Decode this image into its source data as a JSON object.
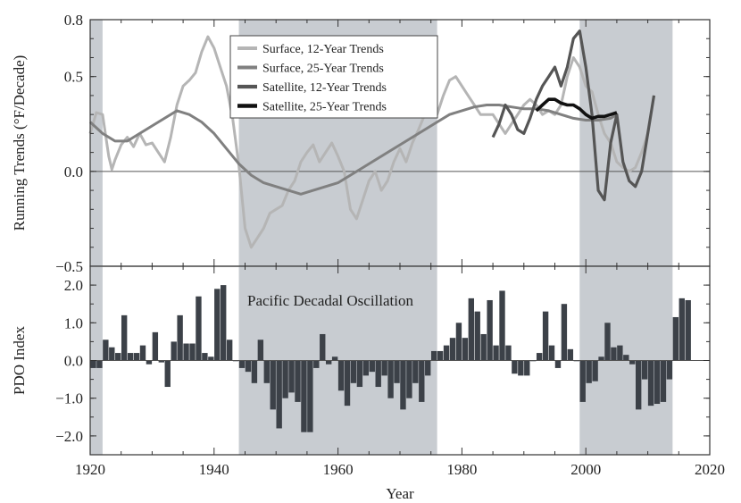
{
  "chart_data": [
    {
      "type": "line",
      "xlabel": "",
      "ylabel": "Running Trends (°F/Decade)",
      "xlim": [
        1920,
        2020
      ],
      "ylim": [
        -0.5,
        0.8
      ],
      "y_ticks": [
        {
          "value": 0.8,
          "label": "0.8"
        },
        {
          "value": 0.5,
          "label": "0.5"
        },
        {
          "value": 0.0,
          "label": "0.0"
        },
        {
          "value": -0.5,
          "label": "−0.5"
        }
      ],
      "shaded_periods": [
        [
          1920,
          1922
        ],
        [
          1944,
          1976
        ],
        [
          1999,
          2014
        ]
      ],
      "legend_position": "top-center",
      "series": [
        {
          "name": "Surface, 12-Year Trends",
          "color": "#b5b5b5",
          "points": [
            [
              1920,
              0.2
            ],
            [
              1921,
              0.31
            ],
            [
              1922,
              0.3
            ],
            [
              1923,
              0.08
            ],
            [
              1923.5,
              0.01
            ],
            [
              1924,
              0.06
            ],
            [
              1925,
              0.14
            ],
            [
              1926,
              0.18
            ],
            [
              1927,
              0.13
            ],
            [
              1928,
              0.2
            ],
            [
              1929,
              0.14
            ],
            [
              1930,
              0.15
            ],
            [
              1931,
              0.1
            ],
            [
              1932,
              0.05
            ],
            [
              1933,
              0.18
            ],
            [
              1934,
              0.35
            ],
            [
              1935,
              0.45
            ],
            [
              1936,
              0.48
            ],
            [
              1937,
              0.52
            ],
            [
              1938,
              0.63
            ],
            [
              1939,
              0.71
            ],
            [
              1940,
              0.65
            ],
            [
              1941,
              0.55
            ],
            [
              1942,
              0.45
            ],
            [
              1943,
              0.28
            ],
            [
              1944,
              0.03
            ],
            [
              1945,
              -0.3
            ],
            [
              1946,
              -0.4
            ],
            [
              1947,
              -0.35
            ],
            [
              1948,
              -0.3
            ],
            [
              1949,
              -0.22
            ],
            [
              1950,
              -0.2
            ],
            [
              1951,
              -0.18
            ],
            [
              1952,
              -0.1
            ],
            [
              1953,
              -0.05
            ],
            [
              1954,
              0.05
            ],
            [
              1955,
              0.1
            ],
            [
              1956,
              0.14
            ],
            [
              1957,
              0.05
            ],
            [
              1958,
              0.1
            ],
            [
              1959,
              0.15
            ],
            [
              1960,
              0.08
            ],
            [
              1961,
              0.0
            ],
            [
              1962,
              -0.2
            ],
            [
              1963,
              -0.25
            ],
            [
              1964,
              -0.15
            ],
            [
              1965,
              -0.05
            ],
            [
              1966,
              0.0
            ],
            [
              1967,
              -0.1
            ],
            [
              1968,
              -0.05
            ],
            [
              1969,
              0.05
            ],
            [
              1970,
              0.12
            ],
            [
              1971,
              0.05
            ],
            [
              1972,
              0.15
            ],
            [
              1973,
              0.22
            ],
            [
              1974,
              0.3
            ],
            [
              1975,
              0.32
            ],
            [
              1976,
              0.3
            ],
            [
              1977,
              0.4
            ],
            [
              1978,
              0.48
            ],
            [
              1979,
              0.5
            ],
            [
              1980,
              0.45
            ],
            [
              1981,
              0.4
            ],
            [
              1982,
              0.35
            ],
            [
              1983,
              0.3
            ],
            [
              1984,
              0.3
            ],
            [
              1985,
              0.3
            ],
            [
              1986,
              0.25
            ],
            [
              1987,
              0.2
            ],
            [
              1988,
              0.25
            ],
            [
              1989,
              0.3
            ],
            [
              1990,
              0.35
            ],
            [
              1991,
              0.38
            ],
            [
              1992,
              0.35
            ],
            [
              1993,
              0.3
            ],
            [
              1994,
              0.32
            ],
            [
              1995,
              0.3
            ],
            [
              1996,
              0.35
            ],
            [
              1997,
              0.5
            ],
            [
              1998,
              0.6
            ],
            [
              1999,
              0.55
            ],
            [
              2000,
              0.45
            ],
            [
              2001,
              0.42
            ],
            [
              2002,
              0.3
            ],
            [
              2003,
              0.2
            ],
            [
              2004,
              0.15
            ],
            [
              2005,
              0.05
            ],
            [
              2006,
              0.02
            ],
            [
              2007,
              0.0
            ],
            [
              2008,
              0.02
            ],
            [
              2009,
              0.1
            ],
            [
              2010,
              0.2
            ]
          ]
        },
        {
          "name": "Surface, 25-Year Trends",
          "color": "#808080",
          "points": [
            [
              1920,
              0.26
            ],
            [
              1922,
              0.2
            ],
            [
              1924,
              0.16
            ],
            [
              1926,
              0.16
            ],
            [
              1928,
              0.2
            ],
            [
              1930,
              0.24
            ],
            [
              1932,
              0.28
            ],
            [
              1934,
              0.32
            ],
            [
              1936,
              0.3
            ],
            [
              1938,
              0.26
            ],
            [
              1940,
              0.2
            ],
            [
              1942,
              0.12
            ],
            [
              1944,
              0.04
            ],
            [
              1946,
              -0.02
            ],
            [
              1948,
              -0.06
            ],
            [
              1950,
              -0.08
            ],
            [
              1952,
              -0.1
            ],
            [
              1954,
              -0.12
            ],
            [
              1956,
              -0.1
            ],
            [
              1958,
              -0.08
            ],
            [
              1960,
              -0.06
            ],
            [
              1962,
              -0.02
            ],
            [
              1964,
              0.02
            ],
            [
              1966,
              0.06
            ],
            [
              1968,
              0.1
            ],
            [
              1970,
              0.14
            ],
            [
              1972,
              0.18
            ],
            [
              1974,
              0.22
            ],
            [
              1976,
              0.26
            ],
            [
              1978,
              0.3
            ],
            [
              1980,
              0.32
            ],
            [
              1982,
              0.34
            ],
            [
              1984,
              0.35
            ],
            [
              1986,
              0.35
            ],
            [
              1988,
              0.34
            ],
            [
              1990,
              0.33
            ],
            [
              1992,
              0.33
            ],
            [
              1994,
              0.32
            ],
            [
              1996,
              0.3
            ],
            [
              1998,
              0.28
            ],
            [
              2000,
              0.27
            ],
            [
              2002,
              0.27
            ],
            [
              2004,
              0.28
            ],
            [
              2005,
              0.3
            ]
          ]
        },
        {
          "name": "Satellite, 12-Year Trends",
          "color": "#555555",
          "points": [
            [
              1985,
              0.18
            ],
            [
              1986,
              0.25
            ],
            [
              1987,
              0.35
            ],
            [
              1988,
              0.3
            ],
            [
              1989,
              0.22
            ],
            [
              1990,
              0.2
            ],
            [
              1991,
              0.28
            ],
            [
              1992,
              0.38
            ],
            [
              1993,
              0.45
            ],
            [
              1994,
              0.5
            ],
            [
              1995,
              0.55
            ],
            [
              1996,
              0.45
            ],
            [
              1997,
              0.55
            ],
            [
              1998,
              0.7
            ],
            [
              1999,
              0.74
            ],
            [
              2000,
              0.55
            ],
            [
              2001,
              0.3
            ],
            [
              2002,
              -0.1
            ],
            [
              2003,
              -0.15
            ],
            [
              2004,
              0.15
            ],
            [
              2005,
              0.3
            ],
            [
              2006,
              0.05
            ],
            [
              2007,
              -0.05
            ],
            [
              2008,
              -0.08
            ],
            [
              2009,
              0.0
            ],
            [
              2010,
              0.2
            ],
            [
              2011,
              0.4
            ]
          ]
        },
        {
          "name": "Satellite, 25-Year Trends",
          "color": "#111111",
          "points": [
            [
              1992,
              0.32
            ],
            [
              1993,
              0.35
            ],
            [
              1994,
              0.38
            ],
            [
              1995,
              0.38
            ],
            [
              1996,
              0.36
            ],
            [
              1997,
              0.35
            ],
            [
              1998,
              0.35
            ],
            [
              1999,
              0.33
            ],
            [
              2000,
              0.3
            ],
            [
              2001,
              0.28
            ],
            [
              2002,
              0.29
            ],
            [
              2003,
              0.29
            ],
            [
              2004,
              0.3
            ],
            [
              2005,
              0.31
            ]
          ]
        }
      ]
    },
    {
      "type": "bar",
      "xlabel": "Year",
      "ylabel": "PDO Index",
      "xlim": [
        1920,
        2020
      ],
      "ylim": [
        -2.5,
        2.5
      ],
      "x_ticks": [
        {
          "value": 1920,
          "label": "1920"
        },
        {
          "value": 1940,
          "label": "1940"
        },
        {
          "value": 1960,
          "label": "1960"
        },
        {
          "value": 1980,
          "label": "1980"
        },
        {
          "value": 2000,
          "label": "2000"
        },
        {
          "value": 2020,
          "label": "2020"
        }
      ],
      "y_ticks": [
        {
          "value": 2.0,
          "label": "2.0"
        },
        {
          "value": 1.0,
          "label": "1.0"
        },
        {
          "value": 0.0,
          "label": "0.0"
        },
        {
          "value": -1.0,
          "label": "−1.0"
        },
        {
          "value": -2.0,
          "label": "−2.0"
        }
      ],
      "annotation": "Pacific Decadal Oscillation",
      "color": "#3c4148",
      "years": [
        1920,
        1921,
        1922,
        1923,
        1924,
        1925,
        1926,
        1927,
        1928,
        1929,
        1930,
        1931,
        1932,
        1933,
        1934,
        1935,
        1936,
        1937,
        1938,
        1939,
        1940,
        1941,
        1942,
        1943,
        1944,
        1945,
        1946,
        1947,
        1948,
        1949,
        1950,
        1951,
        1952,
        1953,
        1954,
        1955,
        1956,
        1957,
        1958,
        1959,
        1960,
        1961,
        1962,
        1963,
        1964,
        1965,
        1966,
        1967,
        1968,
        1969,
        1970,
        1971,
        1972,
        1973,
        1974,
        1975,
        1976,
        1977,
        1978,
        1979,
        1980,
        1981,
        1982,
        1983,
        1984,
        1985,
        1986,
        1987,
        1988,
        1989,
        1990,
        1991,
        1992,
        1993,
        1994,
        1995,
        1996,
        1997,
        1998,
        1999,
        2000,
        2001,
        2002,
        2003,
        2004,
        2005,
        2006,
        2007,
        2008,
        2009,
        2010,
        2011,
        2012,
        2013,
        2014,
        2015,
        2016
      ],
      "values": [
        -0.2,
        -0.2,
        0.55,
        0.35,
        0.2,
        1.2,
        0.2,
        0.2,
        0.4,
        -0.1,
        0.75,
        -0.05,
        -0.7,
        0.5,
        1.2,
        0.45,
        0.45,
        1.7,
        0.2,
        0.1,
        1.9,
        2.0,
        0.55,
        0.0,
        -0.2,
        -0.3,
        -0.6,
        0.55,
        -0.6,
        -1.3,
        -1.8,
        -1.0,
        -0.85,
        -1.1,
        -1.9,
        -1.9,
        -0.2,
        0.7,
        -0.1,
        0.1,
        -0.8,
        -1.2,
        -0.6,
        -0.7,
        -0.4,
        -0.3,
        -0.7,
        -0.4,
        -1.0,
        -0.6,
        -1.3,
        -1.0,
        -0.6,
        -1.1,
        -0.4,
        0.25,
        0.25,
        0.4,
        0.6,
        1.0,
        0.6,
        1.65,
        1.3,
        0.7,
        1.6,
        0.4,
        1.85,
        0.4,
        -0.35,
        -0.4,
        -0.4,
        0.0,
        0.2,
        1.3,
        0.4,
        -0.2,
        1.5,
        0.3,
        0.0,
        -1.1,
        -0.6,
        -0.55,
        0.1,
        1.0,
        0.35,
        0.4,
        0.15,
        -0.1,
        -1.3,
        -0.5,
        -1.2,
        -1.15,
        -1.1,
        -0.5,
        1.15,
        1.65,
        1.6
      ]
    }
  ]
}
